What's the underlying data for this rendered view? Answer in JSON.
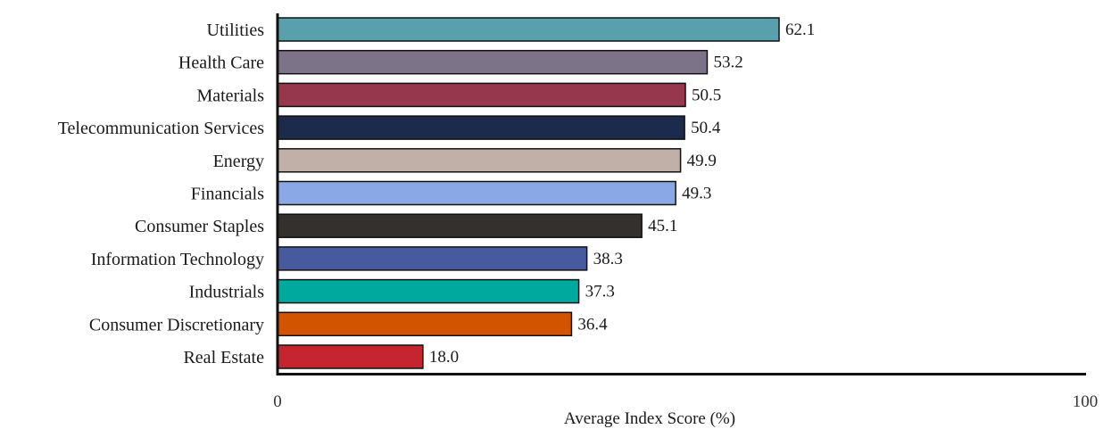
{
  "chart_data": {
    "type": "bar",
    "orientation": "horizontal",
    "title": "",
    "xlabel": "Average Index Score (%)",
    "ylabel": "",
    "xlim": [
      0,
      100
    ],
    "x_ticks": [
      "0",
      "100"
    ],
    "grid": false,
    "legend": "none",
    "categories": [
      "Utilities",
      "Health Care",
      "Materials",
      "Telecommunication Services",
      "Energy",
      "Financials",
      "Consumer Staples",
      "Information Technology",
      "Industrials",
      "Consumer Discretionary",
      "Real Estate"
    ],
    "values": [
      62.1,
      53.2,
      50.5,
      50.4,
      49.9,
      49.3,
      45.1,
      38.3,
      37.3,
      36.4,
      18.0
    ],
    "value_labels": [
      "62.1",
      "53.2",
      "50.5",
      "50.4",
      "49.9",
      "49.3",
      "45.1",
      "38.3",
      "37.3",
      "36.4",
      "18.0"
    ],
    "colors": [
      "#58A0AC",
      "#7D7388",
      "#96374D",
      "#1C2A4B",
      "#C0B0A8",
      "#8AA8E6",
      "#33302E",
      "#485A9E",
      "#00A99D",
      "#D35400",
      "#C4252E"
    ]
  }
}
